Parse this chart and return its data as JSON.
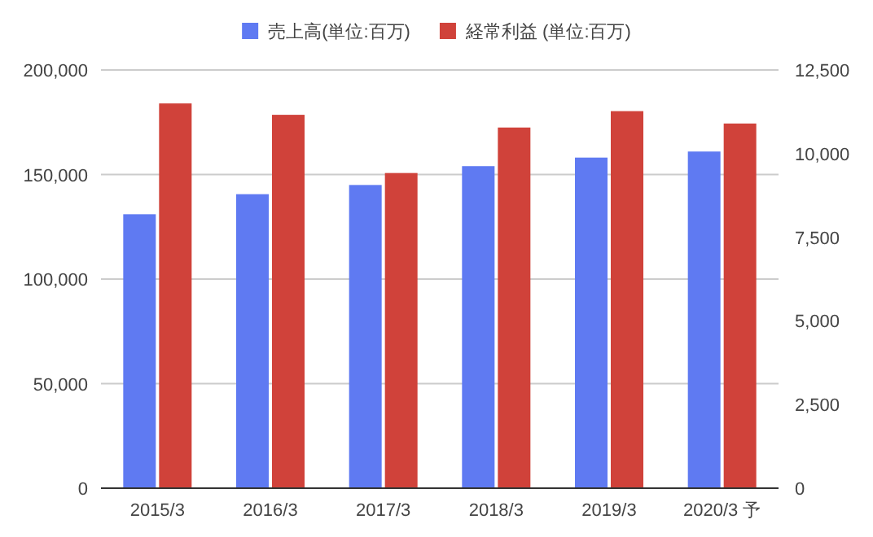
{
  "chart_data": {
    "type": "bar",
    "categories": [
      "2015/3",
      "2016/3",
      "2017/3",
      "2018/3",
      "2019/3",
      "2020/3 予"
    ],
    "series": [
      {
        "name": "売上高(単位:百万)",
        "color": "#5f7af2",
        "values": [
          131000,
          140600,
          145000,
          154000,
          158100,
          161000
        ]
      },
      {
        "name": "経常利益 (単位:百万)",
        "color": "#d0423a",
        "axis": "y2",
        "values": [
          11500,
          11160,
          9420,
          10780,
          11270,
          10900
        ]
      }
    ],
    "ylim": [
      0,
      200000
    ],
    "yticks": [
      {
        "value": 0,
        "label": "0"
      },
      {
        "value": 50000,
        "label": "50,000"
      },
      {
        "value": 100000,
        "label": "100,000"
      },
      {
        "value": 150000,
        "label": "150,000"
      },
      {
        "value": 200000,
        "label": "200,000"
      }
    ],
    "y2lim": [
      0,
      12500
    ],
    "y2ticks": [
      {
        "value": 0,
        "label": "0"
      },
      {
        "value": 2500,
        "label": "2,500"
      },
      {
        "value": 5000,
        "label": "5,000"
      },
      {
        "value": 7500,
        "label": "7,500"
      },
      {
        "value": 10000,
        "label": "10,000"
      },
      {
        "value": 12500,
        "label": "12,500"
      }
    ],
    "grid": "y",
    "legend": "top"
  }
}
